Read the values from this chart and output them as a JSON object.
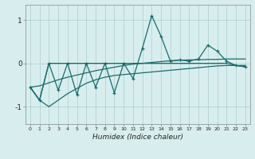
{
  "x": [
    0,
    1,
    2,
    3,
    4,
    5,
    6,
    7,
    8,
    9,
    10,
    11,
    12,
    13,
    14,
    15,
    16,
    17,
    18,
    19,
    20,
    21,
    22,
    23
  ],
  "wiggly": [
    -0.55,
    -0.85,
    0.0,
    -0.62,
    0.0,
    -0.72,
    0.0,
    -0.55,
    0.0,
    -0.68,
    0.0,
    -0.35,
    0.35,
    1.1,
    0.62,
    0.05,
    0.08,
    0.05,
    0.1,
    0.42,
    0.28,
    0.05,
    -0.05,
    -0.08
  ],
  "upper_env": [
    -0.55,
    -0.52,
    -0.45,
    -0.38,
    -0.32,
    -0.27,
    -0.22,
    -0.17,
    -0.13,
    -0.09,
    -0.05,
    -0.02,
    0.0,
    0.02,
    0.04,
    0.06,
    0.07,
    0.08,
    0.08,
    0.09,
    0.09,
    0.1,
    0.1,
    0.1
  ],
  "lower_env": [
    -0.55,
    -0.85,
    -1.0,
    -0.85,
    -0.7,
    -0.58,
    -0.46,
    -0.38,
    -0.32,
    -0.28,
    -0.26,
    -0.24,
    -0.22,
    -0.2,
    -0.18,
    -0.16,
    -0.14,
    -0.12,
    -0.1,
    -0.08,
    -0.06,
    -0.05,
    -0.05,
    -0.05
  ],
  "flat_line": [
    -0.55,
    -0.85,
    0.0,
    0.0,
    0.0,
    0.0,
    0.0,
    0.0,
    0.0,
    0.0,
    0.0,
    0.0,
    0.0,
    0.0,
    0.0,
    0.0,
    0.0,
    0.0,
    0.0,
    0.0,
    0.0,
    0.0,
    -0.05,
    -0.08
  ],
  "bg_color": "#d8eeee",
  "line_color": "#1a6b6b",
  "xlabel": "Humidex (Indice chaleur)",
  "ylim": [
    -1.4,
    1.35
  ],
  "xlim": [
    -0.5,
    23.5
  ],
  "grid_color": "#aacccc",
  "yticks": [
    -1,
    0,
    1
  ],
  "ytick_labels": [
    "-1",
    "0",
    "1"
  ]
}
